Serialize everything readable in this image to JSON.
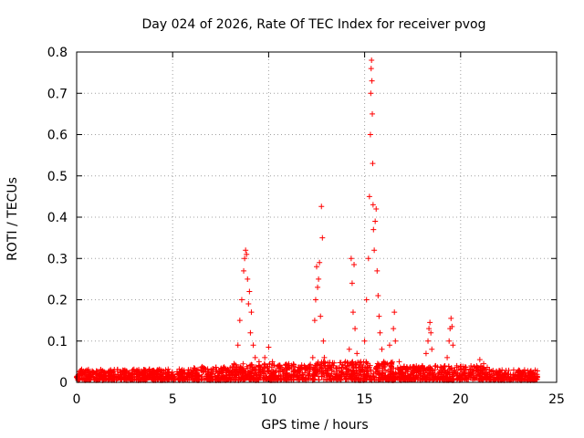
{
  "chart_data": {
    "type": "scatter",
    "title": "Day 024 of 2026, Rate Of TEC Index for receiver pvog",
    "xlabel": "GPS time / hours",
    "ylabel": "ROTI / TECUs",
    "xlim": [
      0,
      25
    ],
    "ylim": [
      0,
      0.8
    ],
    "xticks": [
      0,
      5,
      10,
      15,
      20,
      25
    ],
    "yticks": [
      0,
      0.1,
      0.2,
      0.3,
      0.4,
      0.5,
      0.6,
      0.7,
      0.8
    ],
    "xtick_labels": [
      "0",
      "5",
      "10",
      "15",
      "20",
      "25"
    ],
    "ytick_labels": [
      "0",
      "0.1",
      "0.2",
      "0.3",
      "0.4",
      "0.5",
      "0.6",
      "0.7",
      "0.8"
    ],
    "grid": true,
    "marker": "+",
    "color": "#ff0000",
    "series": [
      {
        "name": "ROTI",
        "points": [
          [
            0.0,
            0.012
          ],
          [
            0.3,
            0.025
          ],
          [
            0.6,
            0.018
          ],
          [
            1.0,
            0.022
          ],
          [
            1.5,
            0.015
          ],
          [
            2.0,
            0.02
          ],
          [
            2.5,
            0.018
          ],
          [
            3.0,
            0.022
          ],
          [
            3.5,
            0.016
          ],
          [
            4.0,
            0.02
          ],
          [
            4.5,
            0.014
          ],
          [
            5.0,
            0.018
          ],
          [
            5.5,
            0.02
          ],
          [
            6.0,
            0.025
          ],
          [
            6.5,
            0.028
          ],
          [
            7.0,
            0.03
          ],
          [
            7.5,
            0.032
          ],
          [
            8.0,
            0.035
          ],
          [
            8.2,
            0.045
          ],
          [
            8.4,
            0.09
          ],
          [
            8.5,
            0.15
          ],
          [
            8.6,
            0.2
          ],
          [
            8.7,
            0.27
          ],
          [
            8.75,
            0.3
          ],
          [
            8.8,
            0.32
          ],
          [
            8.85,
            0.31
          ],
          [
            8.9,
            0.25
          ],
          [
            8.95,
            0.19
          ],
          [
            9.0,
            0.22
          ],
          [
            9.05,
            0.12
          ],
          [
            9.1,
            0.17
          ],
          [
            9.2,
            0.09
          ],
          [
            9.3,
            0.06
          ],
          [
            9.5,
            0.05
          ],
          [
            9.8,
            0.06
          ],
          [
            10.0,
            0.085
          ],
          [
            10.2,
            0.05
          ],
          [
            10.5,
            0.04
          ],
          [
            11.0,
            0.035
          ],
          [
            11.5,
            0.03
          ],
          [
            12.0,
            0.035
          ],
          [
            12.3,
            0.06
          ],
          [
            12.4,
            0.15
          ],
          [
            12.45,
            0.2
          ],
          [
            12.5,
            0.28
          ],
          [
            12.55,
            0.23
          ],
          [
            12.6,
            0.25
          ],
          [
            12.65,
            0.29
          ],
          [
            12.7,
            0.16
          ],
          [
            12.75,
            0.426
          ],
          [
            12.8,
            0.35
          ],
          [
            12.85,
            0.1
          ],
          [
            12.9,
            0.06
          ],
          [
            13.2,
            0.04
          ],
          [
            13.5,
            0.035
          ],
          [
            14.0,
            0.05
          ],
          [
            14.2,
            0.08
          ],
          [
            14.3,
            0.3
          ],
          [
            14.35,
            0.24
          ],
          [
            14.4,
            0.17
          ],
          [
            14.45,
            0.285
          ],
          [
            14.5,
            0.13
          ],
          [
            14.6,
            0.07
          ],
          [
            14.8,
            0.05
          ],
          [
            15.0,
            0.1
          ],
          [
            15.1,
            0.2
          ],
          [
            15.2,
            0.3
          ],
          [
            15.25,
            0.45
          ],
          [
            15.3,
            0.6
          ],
          [
            15.32,
            0.7
          ],
          [
            15.34,
            0.76
          ],
          [
            15.36,
            0.78
          ],
          [
            15.38,
            0.73
          ],
          [
            15.4,
            0.65
          ],
          [
            15.42,
            0.53
          ],
          [
            15.44,
            0.43
          ],
          [
            15.46,
            0.37
          ],
          [
            15.5,
            0.32
          ],
          [
            15.55,
            0.39
          ],
          [
            15.6,
            0.42
          ],
          [
            15.65,
            0.27
          ],
          [
            15.7,
            0.21
          ],
          [
            15.75,
            0.16
          ],
          [
            15.8,
            0.12
          ],
          [
            15.9,
            0.08
          ],
          [
            16.0,
            0.05
          ],
          [
            16.3,
            0.09
          ],
          [
            16.5,
            0.13
          ],
          [
            16.55,
            0.17
          ],
          [
            16.6,
            0.1
          ],
          [
            16.8,
            0.05
          ],
          [
            17.0,
            0.03
          ],
          [
            17.5,
            0.035
          ],
          [
            18.0,
            0.04
          ],
          [
            18.2,
            0.07
          ],
          [
            18.3,
            0.1
          ],
          [
            18.35,
            0.13
          ],
          [
            18.4,
            0.145
          ],
          [
            18.45,
            0.12
          ],
          [
            18.5,
            0.08
          ],
          [
            18.7,
            0.04
          ],
          [
            19.0,
            0.035
          ],
          [
            19.3,
            0.06
          ],
          [
            19.4,
            0.1
          ],
          [
            19.45,
            0.13
          ],
          [
            19.5,
            0.155
          ],
          [
            19.55,
            0.135
          ],
          [
            19.6,
            0.09
          ],
          [
            19.8,
            0.04
          ],
          [
            20.0,
            0.03
          ],
          [
            20.5,
            0.03
          ],
          [
            21.0,
            0.055
          ],
          [
            21.2,
            0.045
          ],
          [
            21.5,
            0.03
          ],
          [
            22.0,
            0.025
          ],
          [
            22.5,
            0.02
          ],
          [
            23.0,
            0.018
          ],
          [
            23.5,
            0.015
          ],
          [
            24.0,
            0.012
          ]
        ]
      }
    ],
    "dense_baseline": {
      "segments": [
        {
          "range": [
            0,
            6
          ],
          "level": [
            0.005,
            0.032
          ]
        },
        {
          "range": [
            6,
            8
          ],
          "level": [
            0.005,
            0.038
          ]
        },
        {
          "range": [
            8,
            12
          ],
          "level": [
            0.005,
            0.045
          ]
        },
        {
          "range": [
            12,
            16.6
          ],
          "level": [
            0.005,
            0.05
          ]
        },
        {
          "range": [
            16.6,
            21.5
          ],
          "level": [
            0.005,
            0.04
          ]
        },
        {
          "range": [
            21.5,
            24
          ],
          "level": [
            0.005,
            0.03
          ]
        }
      ]
    }
  }
}
